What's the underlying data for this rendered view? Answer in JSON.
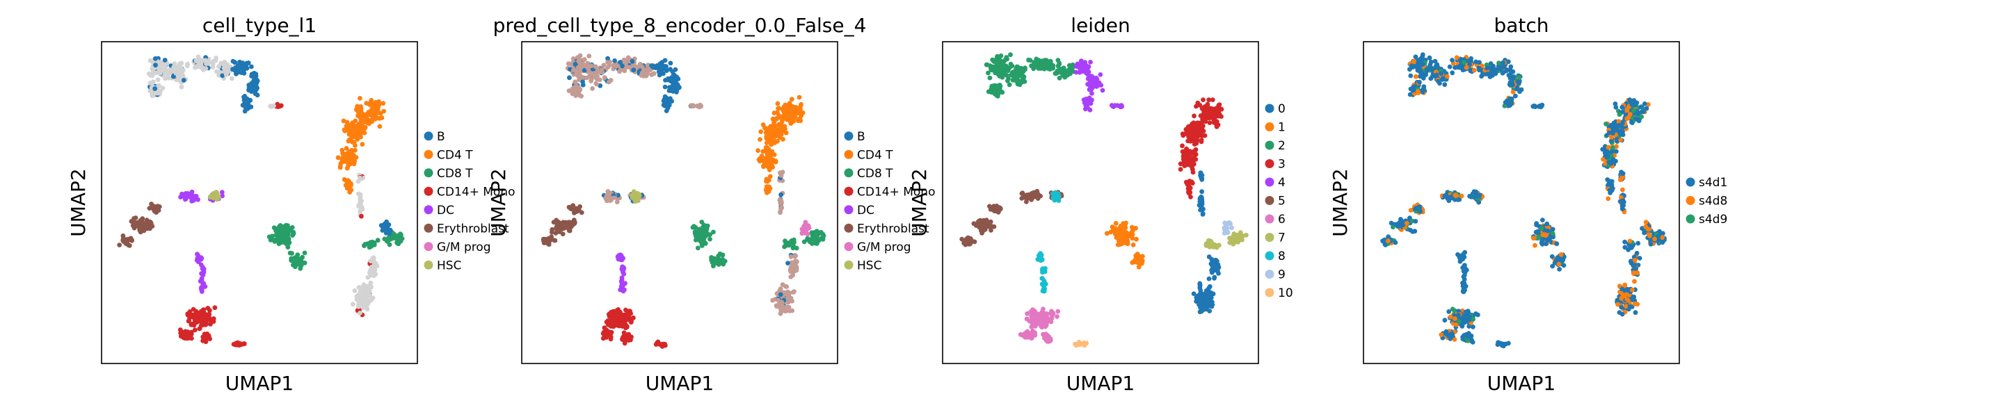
{
  "figure": {
    "xlabel": "UMAP1",
    "ylabel": "UMAP2"
  },
  "chart_data": [
    {
      "type": "scatter",
      "title": "cell_type_l1",
      "xlabel": "UMAP1",
      "ylabel": "UMAP2",
      "legend_placement": "right",
      "grid": false,
      "legend": [
        {
          "label": "B",
          "color": "#1f77b4"
        },
        {
          "label": "CD4 T",
          "color": "#ff7f0e"
        },
        {
          "label": "CD8 T",
          "color": "#279e68"
        },
        {
          "label": "CD14+ Mono",
          "color": "#d62728"
        },
        {
          "label": "DC",
          "color": "#aa40fc"
        },
        {
          "label": "Erythroblast",
          "color": "#8c564b"
        },
        {
          "label": "G/M prog",
          "color": "#e377c2"
        },
        {
          "label": "HSC",
          "color": "#b5bd61"
        }
      ]
    },
    {
      "type": "scatter",
      "title": "pred_cell_type_8_encoder_0.0_False_4",
      "xlabel": "UMAP1",
      "ylabel": "UMAP2",
      "legend_placement": "right",
      "grid": false,
      "legend": [
        {
          "label": "B",
          "color": "#1f77b4"
        },
        {
          "label": "CD4 T",
          "color": "#ff7f0e"
        },
        {
          "label": "CD8 T",
          "color": "#279e68"
        },
        {
          "label": "CD14+ Mono",
          "color": "#d62728"
        },
        {
          "label": "DC",
          "color": "#aa40fc"
        },
        {
          "label": "Erythroblast",
          "color": "#8c564b"
        },
        {
          "label": "G/M prog",
          "color": "#e377c2"
        },
        {
          "label": "HSC",
          "color": "#b5bd61"
        }
      ]
    },
    {
      "type": "scatter",
      "title": "leiden",
      "xlabel": "UMAP1",
      "ylabel": "UMAP2",
      "legend_placement": "right",
      "grid": false,
      "legend": [
        {
          "label": "0",
          "color": "#1f77b4"
        },
        {
          "label": "1",
          "color": "#ff7f0e"
        },
        {
          "label": "2",
          "color": "#279e68"
        },
        {
          "label": "3",
          "color": "#d62728"
        },
        {
          "label": "4",
          "color": "#aa40fc"
        },
        {
          "label": "5",
          "color": "#8c564b"
        },
        {
          "label": "6",
          "color": "#e377c2"
        },
        {
          "label": "7",
          "color": "#b5bd61"
        },
        {
          "label": "8",
          "color": "#17becf"
        },
        {
          "label": "9",
          "color": "#aec7e8"
        },
        {
          "label": "10",
          "color": "#ffbb78"
        }
      ]
    },
    {
      "type": "scatter",
      "title": "batch",
      "xlabel": "UMAP1",
      "ylabel": "UMAP2",
      "legend_placement": "right",
      "grid": false,
      "legend": [
        {
          "label": "s4d1",
          "color": "#1f77b4"
        },
        {
          "label": "s4d8",
          "color": "#ff7f0e"
        },
        {
          "label": "s4d9",
          "color": "#279e68"
        }
      ]
    }
  ]
}
